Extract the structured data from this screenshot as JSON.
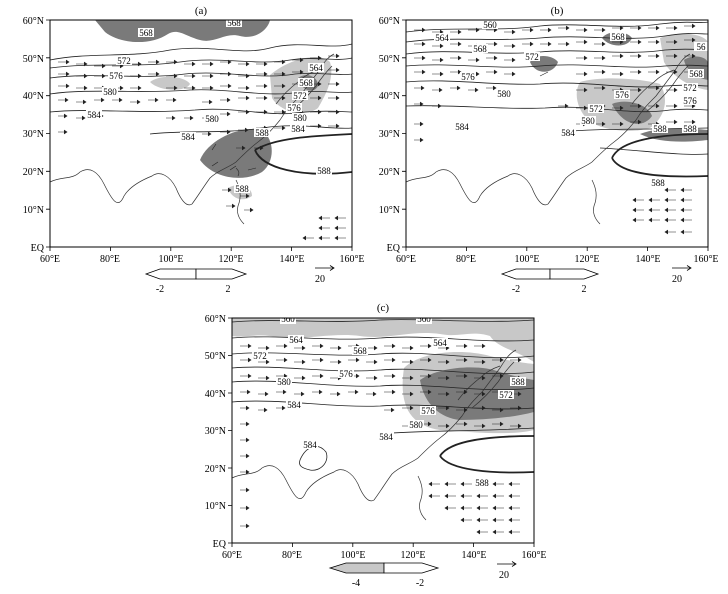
{
  "panels": [
    {
      "label": "(a)",
      "lon_ticks": [
        "60°E",
        "80°E",
        "100°E",
        "120°E",
        "140°E",
        "160°E"
      ],
      "lat_ticks": [
        "60°N",
        "50°N",
        "40°N",
        "30°N",
        "20°N",
        "10°N",
        "EQ"
      ],
      "contour_labels": [
        "568",
        "568",
        "572",
        "576",
        "580",
        "584",
        "580",
        "584",
        "588",
        "564",
        "568",
        "572",
        "576",
        "580",
        "584",
        "588",
        "588"
      ],
      "colorbar": {
        "left": "-2",
        "right": "2"
      },
      "vector_ref": "20"
    },
    {
      "label": "(b)",
      "lon_ticks": [
        "60°E",
        "80°E",
        "100°E",
        "120°E",
        "140°E",
        "160°E"
      ],
      "lat_ticks": [
        "60°N",
        "50°N",
        "40°N",
        "30°N",
        "20°N",
        "10°N",
        "EQ"
      ],
      "contour_labels": [
        "560",
        "564",
        "568",
        "572",
        "576",
        "580",
        "584",
        "588",
        "568",
        "572",
        "576",
        "580",
        "584",
        "588",
        "56",
        "568",
        "572",
        "576",
        "588"
      ],
      "colorbar": {
        "left": "-2",
        "right": "2"
      },
      "vector_ref": "20"
    },
    {
      "label": "(c)",
      "lon_ticks": [
        "60°E",
        "80°E",
        "100°E",
        "120°E",
        "140°E",
        "160°E"
      ],
      "lat_ticks": [
        "60°N",
        "50°N",
        "40°N",
        "30°N",
        "20°N",
        "10°N",
        "EQ"
      ],
      "contour_labels": [
        "560",
        "564",
        "568",
        "572",
        "576",
        "580",
        "584",
        "584",
        "560",
        "564",
        "588",
        "572",
        "576",
        "580",
        "584",
        "588"
      ],
      "colorbar": {
        "left": "-4",
        "right": "-2"
      },
      "vector_ref": "20"
    }
  ],
  "colors": {
    "light_shade": "#c8c8c8",
    "dark_shade": "#7a7a7a",
    "line": "#222222"
  }
}
